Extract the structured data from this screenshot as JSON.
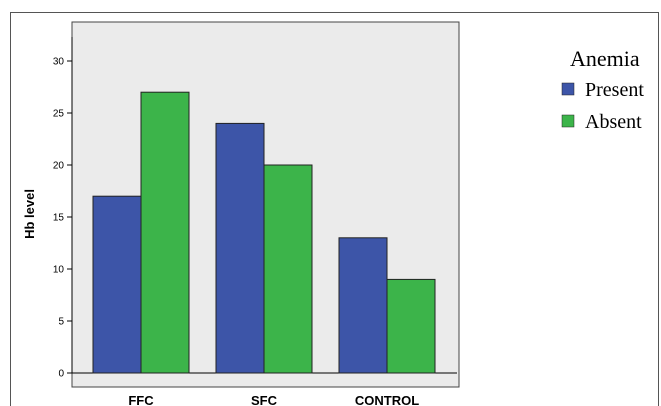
{
  "chart_data": {
    "type": "bar",
    "categories": [
      "FFC",
      "SFC",
      "CONTROL"
    ],
    "series": [
      {
        "name": "Present",
        "color": "#3d55a8",
        "values": [
          17,
          24,
          13
        ]
      },
      {
        "name": "Absent",
        "color": "#3cb44a",
        "values": [
          27,
          20,
          9
        ]
      }
    ],
    "ylabel": "Hb level",
    "xlabel": "",
    "ylim": [
      0,
      30
    ],
    "yticks": [
      0,
      5,
      10,
      15,
      20,
      25,
      30
    ],
    "legend": {
      "title": "Anemia",
      "placement": "right"
    },
    "plot_background": "#ebebeb",
    "grid": false
  }
}
